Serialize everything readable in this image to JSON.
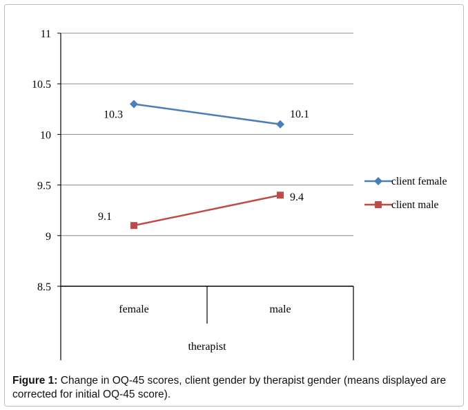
{
  "chart_data": {
    "type": "line",
    "categories": [
      "female",
      "male"
    ],
    "xlabel": "therapist",
    "ylabel": "",
    "ylim": [
      8.5,
      11
    ],
    "yticks": [
      8.5,
      9,
      9.5,
      10,
      10.5,
      11
    ],
    "ytick_labels": [
      "8.5",
      "9",
      "9.5",
      "10",
      "10.5",
      "11"
    ],
    "grid": true,
    "legend_position": "right",
    "series": [
      {
        "name": "client female",
        "values": [
          10.3,
          10.1
        ],
        "data_labels": [
          "10.3",
          "10.1"
        ],
        "color": "#4a7ebb",
        "marker": "diamond"
      },
      {
        "name": "client male",
        "values": [
          9.1,
          9.4
        ],
        "data_labels": [
          "9.1",
          "9.4"
        ],
        "color": "#be4b48",
        "marker": "square"
      }
    ]
  },
  "caption": {
    "label": "Figure 1:",
    "text": " Change in OQ-45 scores, client gender by therapist gender (means displayed are corrected for initial OQ-45 score)."
  }
}
